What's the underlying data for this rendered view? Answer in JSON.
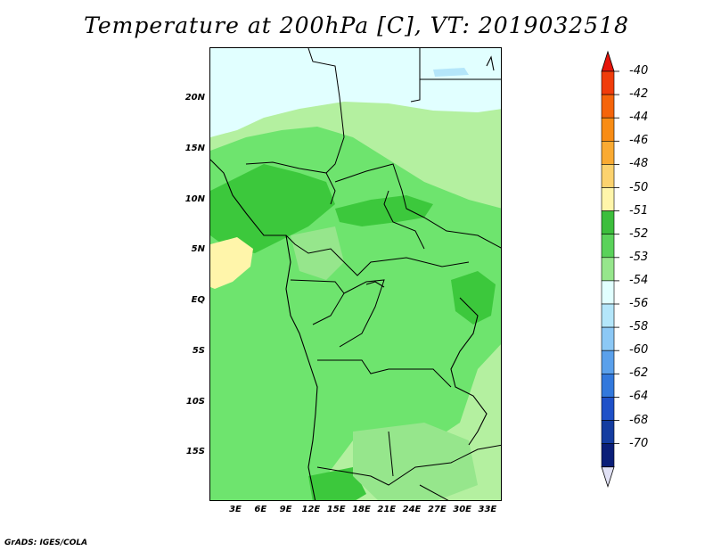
{
  "title": "Temperature at 200hPa [C], VT: 2019032518",
  "footer": "GrADS: IGES/COLA",
  "y_axis": {
    "labels": [
      "20N",
      "15N",
      "10N",
      "5N",
      "EQ",
      "5S",
      "10S",
      "15S"
    ],
    "lat_values": [
      20,
      15,
      10,
      5,
      0,
      -5,
      -10,
      -15
    ]
  },
  "x_axis": {
    "labels": [
      "3E",
      "6E",
      "9E",
      "12E",
      "15E",
      "18E",
      "21E",
      "24E",
      "27E",
      "30E",
      "33E"
    ],
    "lon_values": [
      3,
      6,
      9,
      12,
      15,
      18,
      21,
      24,
      27,
      30,
      33
    ]
  },
  "colorbar": {
    "labels": [
      "-40",
      "-42",
      "-44",
      "-46",
      "-48",
      "-50",
      "-51",
      "-52",
      "-53",
      "-54",
      "-56",
      "-58",
      "-60",
      "-62",
      "-64",
      "-68",
      "-70"
    ],
    "colors": [
      "#e6140a",
      "#f03c0a",
      "#f5640a",
      "#f88c14",
      "#faaa32",
      "#fcd26e",
      "#fff5aa",
      "#3cbe3c",
      "#5ad25a",
      "#96e68c",
      "#e1ffff",
      "#b4e6fa",
      "#8cc8f5",
      "#5aa0eb",
      "#3278dc",
      "#1e50c8",
      "#143ca0",
      "#0a1e78",
      "#e1e1f5"
    ]
  },
  "map_colors": {
    "background": "#b4f0a0",
    "level_54": "#96e68c",
    "level_53": "#6ee46e",
    "level_52": "#3cc83c",
    "level_51": "#fff5aa",
    "level_50": "#fcd26e",
    "cold": "#e1ffff",
    "lightblue": "#b4e6fa",
    "coast": "#000000"
  }
}
